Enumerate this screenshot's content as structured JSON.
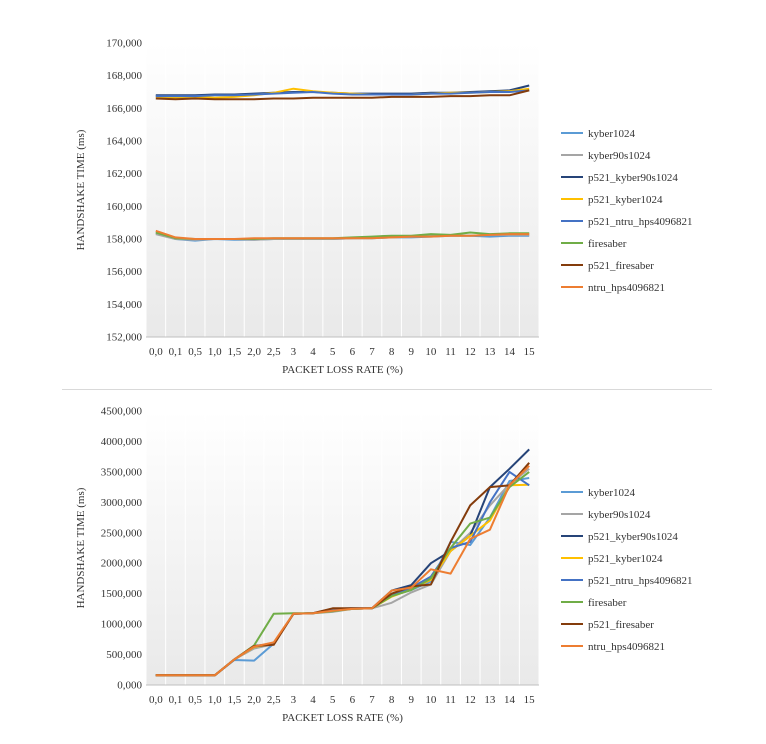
{
  "chart_data": [
    {
      "type": "line",
      "title": "",
      "xlabel": "PACKET LOSS RATE (%)",
      "ylabel": "HANDSHAKE TIME (ms)",
      "ylim": [
        152000,
        170000
      ],
      "yticks": [
        152000,
        154000,
        156000,
        158000,
        160000,
        162000,
        164000,
        166000,
        168000,
        170000
      ],
      "ytick_labels": [
        "152,000",
        "154,000",
        "156,000",
        "158,000",
        "160,000",
        "162,000",
        "164,000",
        "166,000",
        "168,000",
        "170,000"
      ],
      "categories": [
        "0,0",
        "0,1",
        "0,5",
        "1,0",
        "1,5",
        "2,0",
        "2,5",
        "3",
        "4",
        "5",
        "6",
        "7",
        "8",
        "9",
        "10",
        "11",
        "12",
        "13",
        "14",
        "15"
      ],
      "grid": "vertical",
      "legend_position": "right",
      "series": [
        {
          "name": "kyber1024",
          "color": "#5b9bd5",
          "values": [
            158400,
            158000,
            157900,
            158000,
            157950,
            157950,
            158000,
            158000,
            158000,
            158000,
            158050,
            158050,
            158100,
            158100,
            158150,
            158200,
            158200,
            158150,
            158200,
            158200
          ]
        },
        {
          "name": "kyber90s1024",
          "color": "#a5a5a5",
          "values": [
            158300,
            158000,
            157950,
            158000,
            158000,
            157950,
            158000,
            158000,
            158000,
            158000,
            158050,
            158100,
            158100,
            158150,
            158200,
            158200,
            158200,
            158250,
            158250,
            158250
          ]
        },
        {
          "name": "p521_kyber90s1024",
          "color": "#264478",
          "values": [
            166800,
            166800,
            166800,
            166850,
            166850,
            166900,
            166950,
            167000,
            167000,
            166950,
            166900,
            166900,
            166900,
            166900,
            166950,
            166950,
            167000,
            167050,
            167100,
            167400
          ]
        },
        {
          "name": "p521_kyber1024",
          "color": "#ffc000",
          "values": [
            166700,
            166650,
            166700,
            166650,
            166700,
            166800,
            166950,
            167200,
            167050,
            166950,
            166900,
            166850,
            166850,
            166850,
            166900,
            166950,
            166950,
            167000,
            167050,
            167200
          ]
        },
        {
          "name": "p521_ntru_hps4096821",
          "color": "#4472c4",
          "values": [
            166750,
            166750,
            166750,
            166800,
            166800,
            166850,
            166900,
            166950,
            167000,
            166900,
            166850,
            166850,
            166850,
            166850,
            166900,
            166900,
            166950,
            167000,
            167000,
            167100
          ]
        },
        {
          "name": "firesaber",
          "color": "#70ad47",
          "values": [
            158400,
            158050,
            158000,
            158000,
            158000,
            158000,
            158050,
            158050,
            158050,
            158050,
            158100,
            158150,
            158200,
            158200,
            158300,
            158250,
            158400,
            158300,
            158350,
            158350
          ]
        },
        {
          "name": "p521_firesaber",
          "color": "#843c0c",
          "values": [
            166600,
            166550,
            166600,
            166550,
            166550,
            166550,
            166600,
            166600,
            166650,
            166650,
            166650,
            166650,
            166700,
            166700,
            166700,
            166750,
            166750,
            166800,
            166800,
            167100
          ]
        },
        {
          "name": "ntru_hps4096821",
          "color": "#ed7d31",
          "values": [
            158500,
            158100,
            158000,
            158000,
            158000,
            158050,
            158050,
            158050,
            158050,
            158050,
            158050,
            158050,
            158100,
            158150,
            158150,
            158200,
            158200,
            158250,
            158300,
            158300
          ]
        }
      ]
    },
    {
      "type": "line",
      "title": "",
      "xlabel": "PACKET LOSS RATE (%)",
      "ylabel": "HANDSHAKE TIME (ms)",
      "ylim": [
        0,
        4500000
      ],
      "yticks": [
        0,
        500000,
        1000000,
        1500000,
        2000000,
        2500000,
        3000000,
        3500000,
        4000000,
        4500000
      ],
      "ytick_labels": [
        "0,000",
        "500,000",
        "1000,000",
        "1500,000",
        "2000,000",
        "2500,000",
        "3000,000",
        "3500,000",
        "4000,000",
        "4500,000"
      ],
      "categories": [
        "0,0",
        "0,1",
        "0,5",
        "1,0",
        "1,5",
        "2,0",
        "2,5",
        "3",
        "4",
        "5",
        "6",
        "7",
        "8",
        "9",
        "10",
        "11",
        "12",
        "13",
        "14",
        "15"
      ],
      "grid": "vertical",
      "legend_position": "right",
      "series": [
        {
          "name": "kyber1024",
          "color": "#5b9bd5",
          "values": [
            160000,
            160000,
            160000,
            160000,
            410000,
            400000,
            680000,
            1170000,
            1180000,
            1220000,
            1250000,
            1260000,
            1470000,
            1560000,
            1700000,
            2350000,
            2300000,
            2750000,
            3350000,
            3400000
          ]
        },
        {
          "name": "kyber90s1024",
          "color": "#a5a5a5",
          "values": [
            160000,
            160000,
            160000,
            160000,
            420000,
            600000,
            670000,
            1170000,
            1180000,
            1200000,
            1250000,
            1260000,
            1350000,
            1520000,
            1650000,
            2200000,
            2500000,
            2950000,
            3300000,
            3550000
          ]
        },
        {
          "name": "p521_kyber90s1024",
          "color": "#264478",
          "values": [
            160000,
            160000,
            160000,
            160000,
            420000,
            640000,
            680000,
            1170000,
            1180000,
            1250000,
            1260000,
            1260000,
            1550000,
            1640000,
            2000000,
            2200000,
            2450000,
            3250000,
            3550000,
            3870000
          ]
        },
        {
          "name": "p521_kyber1024",
          "color": "#ffc000",
          "values": [
            160000,
            160000,
            160000,
            160000,
            420000,
            620000,
            680000,
            1170000,
            1180000,
            1230000,
            1250000,
            1260000,
            1450000,
            1570000,
            1730000,
            2200000,
            2450000,
            2700000,
            3280000,
            3290000
          ]
        },
        {
          "name": "p521_ntru_hps4096821",
          "color": "#4472c4",
          "values": [
            160000,
            160000,
            160000,
            160000,
            420000,
            630000,
            680000,
            1170000,
            1180000,
            1230000,
            1250000,
            1260000,
            1480000,
            1600000,
            1780000,
            2250000,
            2350000,
            3000000,
            3500000,
            3280000
          ]
        },
        {
          "name": "firesaber",
          "color": "#70ad47",
          "values": [
            160000,
            160000,
            160000,
            160000,
            420000,
            650000,
            1170000,
            1180000,
            1180000,
            1210000,
            1250000,
            1260000,
            1460000,
            1560000,
            1750000,
            2250000,
            2650000,
            2750000,
            3250000,
            3500000
          ]
        },
        {
          "name": "p521_firesaber",
          "color": "#843c0c",
          "values": [
            160000,
            160000,
            160000,
            160000,
            420000,
            640000,
            660000,
            1170000,
            1180000,
            1260000,
            1260000,
            1260000,
            1500000,
            1620000,
            1650000,
            2350000,
            2950000,
            3250000,
            3280000,
            3650000
          ]
        },
        {
          "name": "ntru_hps4096821",
          "color": "#ed7d31",
          "values": [
            160000,
            160000,
            160000,
            160000,
            420000,
            630000,
            700000,
            1170000,
            1180000,
            1220000,
            1250000,
            1260000,
            1550000,
            1600000,
            1900000,
            1830000,
            2400000,
            2550000,
            3280000,
            3600000
          ]
        }
      ]
    }
  ]
}
